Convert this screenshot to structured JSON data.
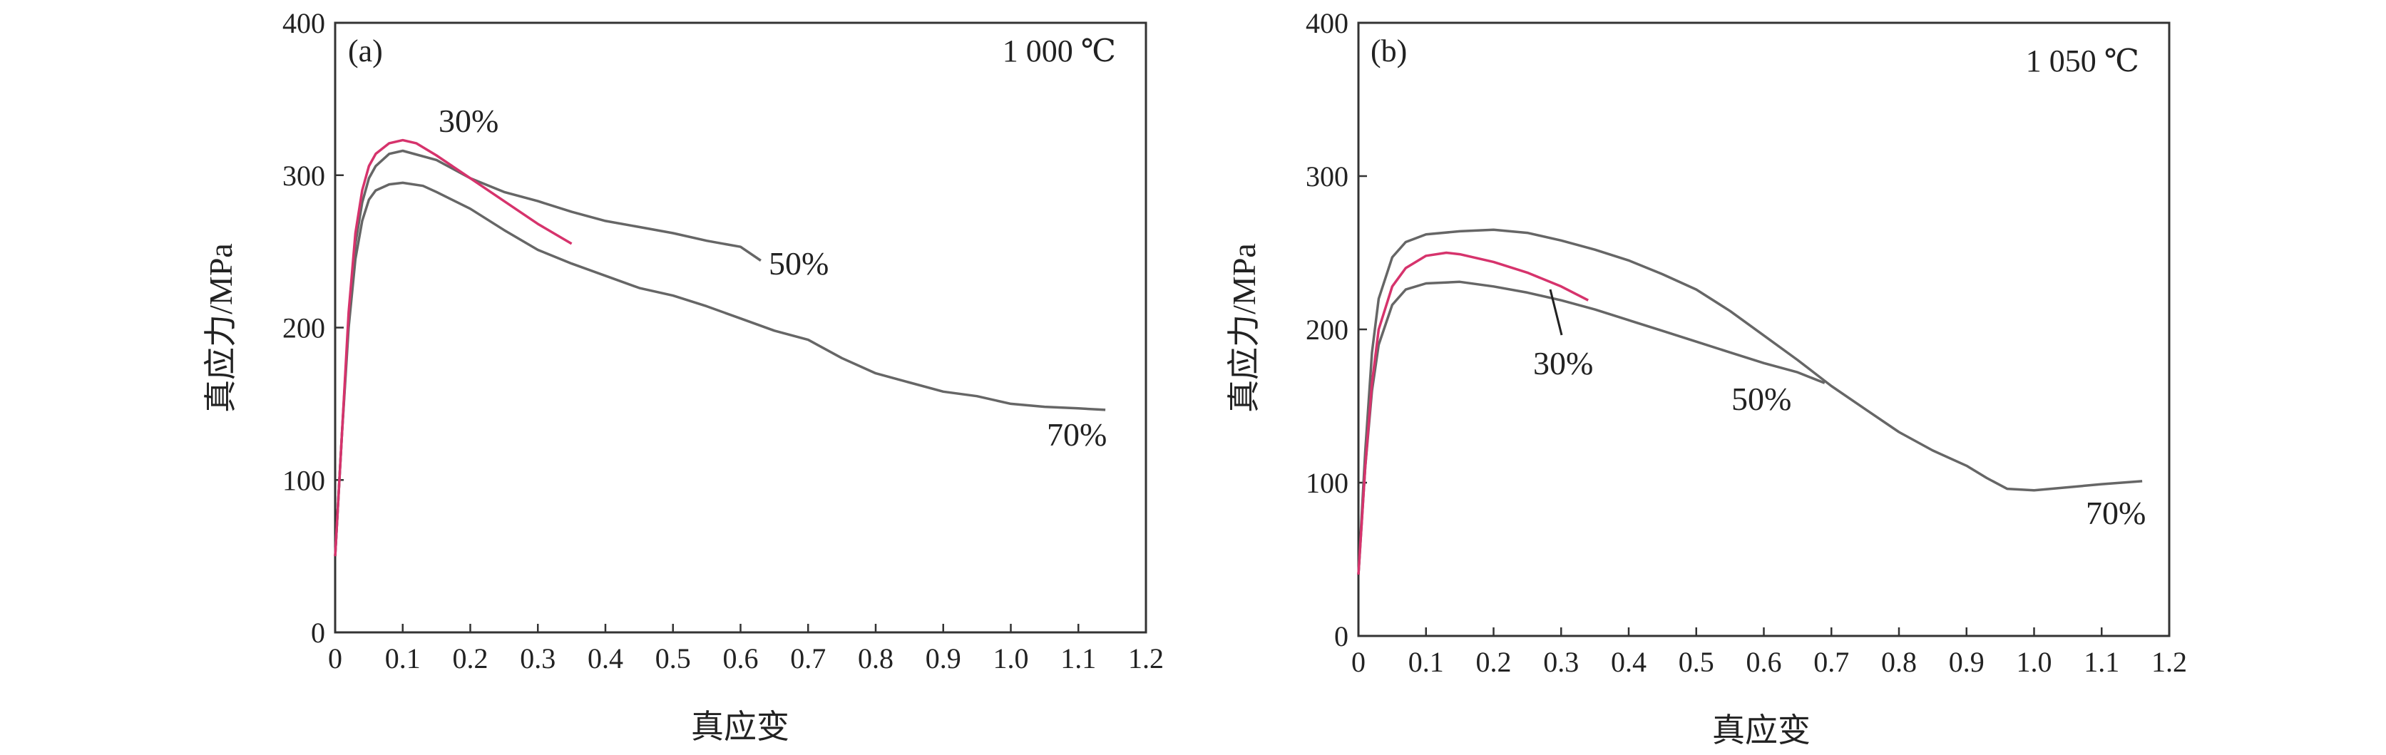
{
  "chart_data": [
    {
      "type": "line",
      "panel_label": "(a)",
      "annotation": "1 000 ℃",
      "xlabel": "真应变",
      "ylabel": "真应力/MPa",
      "xlim": [
        0,
        1.2
      ],
      "ylim": [
        0,
        400
      ],
      "xticks": [
        "0",
        "0.1",
        "0.2",
        "0.3",
        "0.4",
        "0.5",
        "0.6",
        "0.7",
        "0.8",
        "0.9",
        "1.0",
        "1.1",
        "1.2"
      ],
      "yticks": [
        "0",
        "100",
        "200",
        "300",
        "400"
      ],
      "series": [
        {
          "name": "30%",
          "color": "#d6336c",
          "points": [
            [
              0.0,
              50
            ],
            [
              0.01,
              130
            ],
            [
              0.02,
              210
            ],
            [
              0.03,
              262
            ],
            [
              0.04,
              290
            ],
            [
              0.05,
              306
            ],
            [
              0.06,
              314
            ],
            [
              0.08,
              321
            ],
            [
              0.1,
              323
            ],
            [
              0.12,
              321
            ],
            [
              0.15,
              313
            ],
            [
              0.2,
              298
            ],
            [
              0.25,
              283
            ],
            [
              0.3,
              268
            ],
            [
              0.35,
              255
            ]
          ]
        },
        {
          "name": "50%",
          "color": "#666666",
          "points": [
            [
              0.0,
              50
            ],
            [
              0.01,
              130
            ],
            [
              0.02,
              205
            ],
            [
              0.03,
              255
            ],
            [
              0.04,
              282
            ],
            [
              0.05,
              298
            ],
            [
              0.06,
              306
            ],
            [
              0.08,
              314
            ],
            [
              0.1,
              316
            ],
            [
              0.15,
              310
            ],
            [
              0.2,
              298
            ],
            [
              0.25,
              289
            ],
            [
              0.3,
              283
            ],
            [
              0.35,
              276
            ],
            [
              0.4,
              270
            ],
            [
              0.45,
              266
            ],
            [
              0.5,
              262
            ],
            [
              0.55,
              257
            ],
            [
              0.6,
              253
            ],
            [
              0.63,
              244
            ]
          ]
        },
        {
          "name": "70%",
          "color": "#666666",
          "points": [
            [
              0.0,
              50
            ],
            [
              0.01,
              130
            ],
            [
              0.02,
              200
            ],
            [
              0.03,
              245
            ],
            [
              0.04,
              270
            ],
            [
              0.05,
              284
            ],
            [
              0.06,
              290
            ],
            [
              0.08,
              294
            ],
            [
              0.1,
              295
            ],
            [
              0.13,
              293
            ],
            [
              0.15,
              289
            ],
            [
              0.2,
              278
            ],
            [
              0.25,
              264
            ],
            [
              0.3,
              251
            ],
            [
              0.35,
              242
            ],
            [
              0.4,
              234
            ],
            [
              0.45,
              226
            ],
            [
              0.5,
              221
            ],
            [
              0.55,
              214
            ],
            [
              0.6,
              206
            ],
            [
              0.65,
              198
            ],
            [
              0.7,
              192
            ],
            [
              0.75,
              180
            ],
            [
              0.8,
              170
            ],
            [
              0.85,
              164
            ],
            [
              0.9,
              158
            ],
            [
              0.95,
              155
            ],
            [
              1.0,
              150
            ],
            [
              1.05,
              148
            ],
            [
              1.1,
              147
            ],
            [
              1.14,
              146
            ]
          ]
        }
      ]
    },
    {
      "type": "line",
      "panel_label": "(b)",
      "annotation": "1 050 ℃",
      "xlabel": "真应变",
      "ylabel": "真应力/MPa",
      "xlim": [
        0,
        1.2
      ],
      "ylim": [
        0,
        400
      ],
      "xticks": [
        "0",
        "0.1",
        "0.2",
        "0.3",
        "0.4",
        "0.5",
        "0.6",
        "0.7",
        "0.8",
        "0.9",
        "1.0",
        "1.1",
        "1.2"
      ],
      "yticks": [
        "0",
        "100",
        "200",
        "300",
        "400"
      ],
      "series": [
        {
          "name": "30%",
          "color": "#d6336c",
          "points": [
            [
              0.0,
              40
            ],
            [
              0.01,
              110
            ],
            [
              0.02,
              165
            ],
            [
              0.03,
              200
            ],
            [
              0.05,
              228
            ],
            [
              0.07,
              240
            ],
            [
              0.1,
              248
            ],
            [
              0.13,
              250
            ],
            [
              0.15,
              249
            ],
            [
              0.2,
              244
            ],
            [
              0.25,
              237
            ],
            [
              0.3,
              228
            ],
            [
              0.34,
              219
            ]
          ]
        },
        {
          "name": "50%",
          "color": "#666666",
          "points": [
            [
              0.0,
              40
            ],
            [
              0.01,
              110
            ],
            [
              0.02,
              160
            ],
            [
              0.03,
              190
            ],
            [
              0.05,
              216
            ],
            [
              0.07,
              226
            ],
            [
              0.1,
              230
            ],
            [
              0.15,
              231
            ],
            [
              0.2,
              228
            ],
            [
              0.25,
              224
            ],
            [
              0.3,
              219
            ],
            [
              0.35,
              213
            ],
            [
              0.4,
              206
            ],
            [
              0.45,
              199
            ],
            [
              0.5,
              192
            ],
            [
              0.55,
              185
            ],
            [
              0.6,
              178
            ],
            [
              0.65,
              172
            ],
            [
              0.69,
              165
            ]
          ]
        },
        {
          "name": "70%",
          "color": "#666666",
          "points": [
            [
              0.0,
              40
            ],
            [
              0.01,
              120
            ],
            [
              0.02,
              185
            ],
            [
              0.03,
              220
            ],
            [
              0.05,
              247
            ],
            [
              0.07,
              257
            ],
            [
              0.1,
              262
            ],
            [
              0.15,
              264
            ],
            [
              0.2,
              265
            ],
            [
              0.25,
              263
            ],
            [
              0.3,
              258
            ],
            [
              0.35,
              252
            ],
            [
              0.4,
              245
            ],
            [
              0.45,
              236
            ],
            [
              0.5,
              226
            ],
            [
              0.55,
              212
            ],
            [
              0.6,
              196
            ],
            [
              0.65,
              180
            ],
            [
              0.7,
              163
            ],
            [
              0.75,
              148
            ],
            [
              0.8,
              133
            ],
            [
              0.85,
              121
            ],
            [
              0.9,
              111
            ],
            [
              0.93,
              103
            ],
            [
              0.96,
              96
            ],
            [
              1.0,
              95
            ],
            [
              1.05,
              97
            ],
            [
              1.1,
              99
            ],
            [
              1.16,
              101
            ]
          ]
        }
      ]
    }
  ]
}
